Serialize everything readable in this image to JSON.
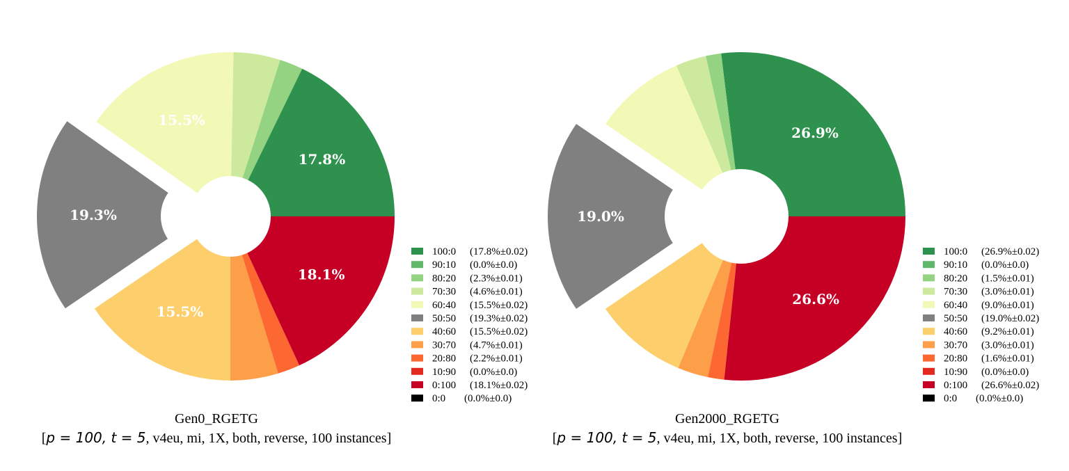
{
  "chart_data": [
    {
      "type": "pie",
      "title": "Gen0_RGETG",
      "subtitle": "[p = 100, t = 5, v4eu, mi, 1X, both, reverse, 100 instances]",
      "subtitle_math": "p = 100, t = 5",
      "subtitle_rest": ", v4eu, mi, 1X, both, reverse, 100 instances]",
      "categories": [
        "100:0",
        "90:10",
        "80:20",
        "70:30",
        "60:40",
        "50:50",
        "40:60",
        "30:70",
        "20:80",
        "10:90",
        "0:100",
        "0:0"
      ],
      "values": [
        17.8,
        0.0,
        2.3,
        4.6,
        15.5,
        19.3,
        15.5,
        4.7,
        2.2,
        0.0,
        18.1,
        0.0
      ],
      "errors": [
        0.02,
        0.0,
        0.01,
        0.01,
        0.02,
        0.02,
        0.02,
        0.01,
        0.01,
        0.0,
        0.02,
        0.0
      ],
      "legend_values": [
        "(17.8%±0.02)",
        "(0.0%±0.0)",
        "(2.3%±0.01)",
        "(4.6%±0.01)",
        "(15.5%±0.02)",
        "(19.3%±0.02)",
        "(15.5%±0.02)",
        "(4.7%±0.01)",
        "(2.2%±0.01)",
        "(0.0%±0.0)",
        "(18.1%±0.02)",
        "(0.0%±0.0)"
      ],
      "slice_labels": [
        "17.8%",
        "",
        "",
        "",
        "15.5%",
        "19.3%",
        "15.5%",
        "",
        "",
        "",
        "18.1%",
        ""
      ],
      "exploded": "50:50",
      "legend_position": "lower-right"
    },
    {
      "type": "pie",
      "title": "Gen2000_RGETG",
      "subtitle": "[p = 100, t = 5, v4eu, mi, 1X, both, reverse, 100 instances]",
      "subtitle_math": "p = 100, t = 5",
      "subtitle_rest": ", v4eu, mi, 1X, both, reverse, 100 instances]",
      "categories": [
        "100:0",
        "90:10",
        "80:20",
        "70:30",
        "60:40",
        "50:50",
        "40:60",
        "30:70",
        "20:80",
        "10:90",
        "0:100",
        "0:0"
      ],
      "values": [
        26.9,
        0.0,
        1.5,
        3.0,
        9.0,
        19.0,
        9.2,
        3.0,
        1.6,
        0.0,
        26.6,
        0.0
      ],
      "errors": [
        0.02,
        0.0,
        0.01,
        0.01,
        0.01,
        0.02,
        0.01,
        0.01,
        0.01,
        0.0,
        0.02,
        0.0
      ],
      "legend_values": [
        "(26.9%±0.02)",
        "(0.0%±0.0)",
        "(1.5%±0.01)",
        "(3.0%±0.01)",
        "(9.0%±0.01)",
        "(19.0%±0.02)",
        "(9.2%±0.01)",
        "(3.0%±0.01)",
        "(1.6%±0.01)",
        "(0.0%±0.0)",
        "(26.6%±0.02)",
        "(0.0%±0.0)"
      ],
      "slice_labels": [
        "26.9%",
        "",
        "",
        "",
        "",
        "19.0%",
        "",
        "",
        "",
        "",
        "26.6%",
        ""
      ],
      "exploded": "50:50",
      "legend_position": "lower-right"
    }
  ],
  "colors": [
    "#2e914e",
    "#5fb86a",
    "#94d382",
    "#cde99d",
    "#f2f9b6",
    "#808080",
    "#fdcf6c",
    "#fd9e49",
    "#fc6732",
    "#e3281e",
    "#c50024",
    "#000000"
  ]
}
